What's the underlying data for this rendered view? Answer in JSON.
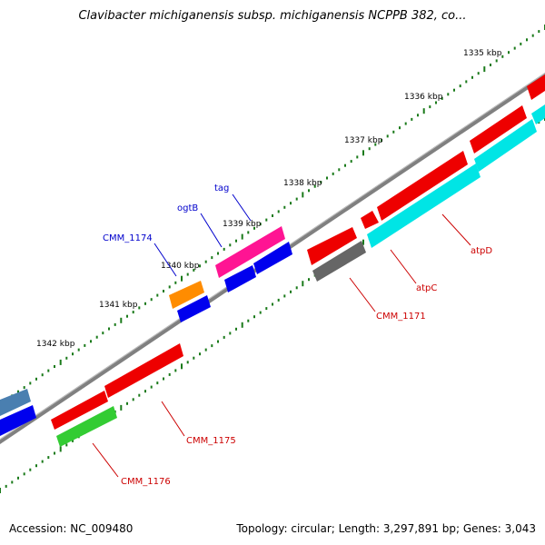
{
  "title": "Clavibacter michiganensis subsp. michiganensis NCPPB 382, co...",
  "footer": {
    "accession": "Accession: NC_009480",
    "topology": "Topology: circular; Length: 3,297,891 bp; Genes: 3,043"
  },
  "scale_labels": [
    "1335 kbp",
    "1336 kbp",
    "1337 kbp",
    "1338 kbp",
    "1339 kbp",
    "1340 kbp",
    "1341 kbp",
    "1342 kbp"
  ],
  "gene_labels": [
    {
      "text": "tag",
      "color": "#0000cc"
    },
    {
      "text": "ogtB",
      "color": "#0000cc"
    },
    {
      "text": "CMM_1174",
      "color": "#0000cc"
    },
    {
      "text": "atpD",
      "color": "#cc0000"
    },
    {
      "text": "atpC",
      "color": "#cc0000"
    },
    {
      "text": "CMM_1171",
      "color": "#cc0000"
    },
    {
      "text": "CMM_1175",
      "color": "#cc0000"
    },
    {
      "text": "CMM_1176",
      "color": "#cc0000"
    }
  ],
  "colors": {
    "red": "#ee0000",
    "cyan": "#00e5e5",
    "blue": "#0000ee",
    "magenta": "#ff1493",
    "orange": "#ff8c00",
    "green": "#33cc33",
    "gray": "#666666",
    "steel": "#4a7fb0",
    "tick": "#1a7a1a",
    "backbone": "#808080"
  }
}
